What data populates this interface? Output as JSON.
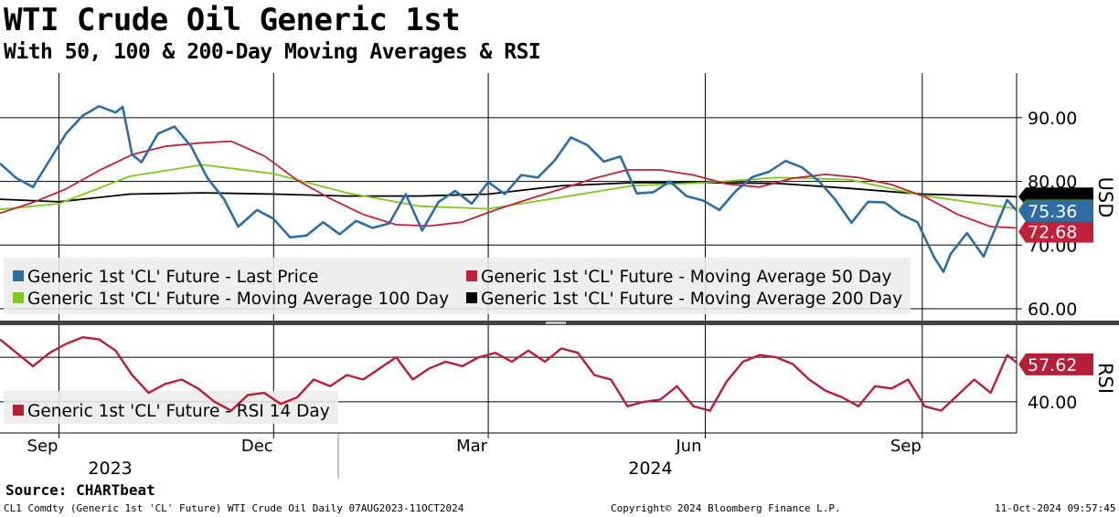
{
  "header": {
    "title": "WTI Crude Oil Generic 1st",
    "subtitle": "With 50, 100 & 200-Day Moving Averages & RSI"
  },
  "footer": {
    "source": "Source: CHARTbeat",
    "left": "CL1 Comdty (Generic 1st 'CL' Future) WTI Crude Oil  Daily 07AUG2023-11OCT2024",
    "center": "Copyright© 2024 Bloomberg Finance L.P.",
    "right": "11-Oct-2024 09:57:45"
  },
  "colors": {
    "last_price": "#2e6da4",
    "ma50": "#c0203a",
    "ma100": "#7ec820",
    "ma200": "#000000",
    "rsi": "#b81d3a",
    "grid": "#000000"
  },
  "chart_data": [
    {
      "type": "line",
      "panel": "price",
      "ylabel": "USD",
      "ylim": [
        58,
        97
      ],
      "xlim": [
        "2023-08-07",
        "2024-10-11"
      ],
      "y_ticks": [
        60,
        70,
        80,
        90
      ],
      "y_tick_labels": [
        "60.00",
        "70.00",
        "80.00",
        "90.00"
      ],
      "x_ticks": [
        "2023-09-01",
        "2023-12-01",
        "2024-03-01",
        "2024-06-01",
        "2024-09-01"
      ],
      "x_tick_labels": [
        "Sep",
        "Dec",
        "Mar",
        "Jun",
        "Sep"
      ],
      "year_labels": [
        {
          "date": "2023-10-16",
          "label": "2023"
        },
        {
          "date": "2024-06-01",
          "label": "2024"
        }
      ],
      "legend_position": "bottom-left",
      "last_value_labels": [
        {
          "series": "Generic 1st 'CL' Future - Last Price",
          "label": "75.36",
          "value": 75.36
        },
        {
          "series": "Generic 1st 'CL' Future - Moving Average 50 Day",
          "label": "72.68",
          "value": 72.68
        }
      ],
      "series": [
        {
          "name": "Generic 1st 'CL' Future - Last Price",
          "x": [
            "2023-08-07",
            "2023-08-14",
            "2023-08-21",
            "2023-08-28",
            "2023-09-04",
            "2023-09-11",
            "2023-09-18",
            "2023-09-25",
            "2023-09-28",
            "2023-10-02",
            "2023-10-06",
            "2023-10-13",
            "2023-10-20",
            "2023-10-27",
            "2023-11-03",
            "2023-11-10",
            "2023-11-16",
            "2023-11-24",
            "2023-12-01",
            "2023-12-08",
            "2023-12-15",
            "2023-12-22",
            "2023-12-29",
            "2024-01-05",
            "2024-01-12",
            "2024-01-19",
            "2024-01-26",
            "2024-02-02",
            "2024-02-09",
            "2024-02-16",
            "2024-02-23",
            "2024-03-01",
            "2024-03-08",
            "2024-03-15",
            "2024-03-22",
            "2024-03-29",
            "2024-04-05",
            "2024-04-12",
            "2024-04-19",
            "2024-04-26",
            "2024-05-03",
            "2024-05-10",
            "2024-05-17",
            "2024-05-24",
            "2024-05-31",
            "2024-06-07",
            "2024-06-14",
            "2024-06-21",
            "2024-06-28",
            "2024-07-05",
            "2024-07-12",
            "2024-07-19",
            "2024-07-26",
            "2024-08-02",
            "2024-08-09",
            "2024-08-16",
            "2024-08-23",
            "2024-08-30",
            "2024-09-06",
            "2024-09-10",
            "2024-09-13",
            "2024-09-20",
            "2024-09-27",
            "2024-10-04",
            "2024-10-07",
            "2024-10-11"
          ],
          "values": [
            82.8,
            80.5,
            79.1,
            83.3,
            87.5,
            90.3,
            91.8,
            90.8,
            91.7,
            84.2,
            83.0,
            87.5,
            88.6,
            85.5,
            80.5,
            77.2,
            72.9,
            75.5,
            74.1,
            71.2,
            71.5,
            73.6,
            71.7,
            73.8,
            72.7,
            73.4,
            78.0,
            72.3,
            76.8,
            78.5,
            76.5,
            79.9,
            78.0,
            81.0,
            80.6,
            83.2,
            86.9,
            85.7,
            83.1,
            83.9,
            78.1,
            78.3,
            80.0,
            77.7,
            77.0,
            75.5,
            78.5,
            80.7,
            81.5,
            83.2,
            82.2,
            80.1,
            77.2,
            73.5,
            76.8,
            76.7,
            74.8,
            73.6,
            68.1,
            65.8,
            68.6,
            71.9,
            68.2,
            74.4,
            77.1,
            75.4
          ]
        },
        {
          "name": "Generic 1st 'CL' Future - Moving Average 50 Day",
          "x": [
            "2023-08-07",
            "2023-08-21",
            "2023-09-04",
            "2023-09-18",
            "2023-10-02",
            "2023-10-16",
            "2023-10-30",
            "2023-11-13",
            "2023-11-27",
            "2023-12-11",
            "2023-12-25",
            "2024-01-08",
            "2024-01-22",
            "2024-02-05",
            "2024-02-19",
            "2024-03-04",
            "2024-03-18",
            "2024-04-01",
            "2024-04-15",
            "2024-04-29",
            "2024-05-13",
            "2024-05-27",
            "2024-06-10",
            "2024-06-24",
            "2024-07-08",
            "2024-07-22",
            "2024-08-05",
            "2024-08-19",
            "2024-09-02",
            "2024-09-16",
            "2024-09-30",
            "2024-10-11"
          ],
          "values": [
            75.0,
            76.7,
            78.8,
            81.7,
            84.2,
            85.5,
            86.0,
            86.3,
            84.0,
            80.2,
            77.3,
            74.8,
            73.2,
            73.0,
            73.6,
            75.5,
            77.2,
            78.8,
            80.5,
            81.8,
            81.8,
            81.0,
            79.6,
            79.1,
            80.5,
            81.1,
            80.6,
            79.5,
            77.6,
            74.8,
            72.9,
            72.7
          ]
        },
        {
          "name": "Generic 1st 'CL' Future - Moving Average 100 Day",
          "x": [
            "2023-08-07",
            "2023-09-01",
            "2023-10-01",
            "2023-11-01",
            "2023-12-01",
            "2024-01-01",
            "2024-02-01",
            "2024-03-01",
            "2024-04-01",
            "2024-05-01",
            "2024-06-01",
            "2024-07-01",
            "2024-08-01",
            "2024-09-01",
            "2024-10-11"
          ],
          "values": [
            75.6,
            76.5,
            80.8,
            82.6,
            81.2,
            78.2,
            76.1,
            75.7,
            77.5,
            79.3,
            79.8,
            80.6,
            80.3,
            77.8,
            75.7
          ]
        },
        {
          "name": "Generic 1st 'CL' Future - Moving Average 200 Day",
          "x": [
            "2023-08-07",
            "2023-09-01",
            "2023-10-01",
            "2023-11-01",
            "2023-12-01",
            "2024-01-01",
            "2024-02-01",
            "2024-03-01",
            "2024-04-01",
            "2024-05-01",
            "2024-06-01",
            "2024-07-01",
            "2024-08-01",
            "2024-09-01",
            "2024-10-11"
          ],
          "values": [
            77.2,
            76.8,
            78.0,
            78.2,
            78.0,
            77.7,
            77.7,
            78.0,
            79.3,
            79.8,
            79.8,
            79.7,
            78.9,
            78.0,
            77.6
          ]
        }
      ]
    },
    {
      "type": "line",
      "panel": "rsi",
      "ylabel": "RSI",
      "ylim": [
        26,
        74
      ],
      "xlim": [
        "2023-08-07",
        "2024-10-11"
      ],
      "y_ticks": [
        40,
        60
      ],
      "y_tick_labels": [
        "40.00"
      ],
      "legend_position": "bottom-left",
      "last_value_labels": [
        {
          "series": "Generic 1st 'CL' Future - RSI 14 Day",
          "label": "57.62",
          "value": 57.62
        }
      ],
      "series": [
        {
          "name": "Generic 1st 'CL' Future - RSI 14 Day",
          "x": [
            "2023-08-07",
            "2023-08-14",
            "2023-08-21",
            "2023-08-28",
            "2023-09-04",
            "2023-09-11",
            "2023-09-18",
            "2023-09-25",
            "2023-10-02",
            "2023-10-09",
            "2023-10-16",
            "2023-10-23",
            "2023-10-30",
            "2023-11-06",
            "2023-11-13",
            "2023-11-20",
            "2023-11-27",
            "2023-12-04",
            "2023-12-11",
            "2023-12-18",
            "2023-12-25",
            "2024-01-01",
            "2024-01-08",
            "2024-01-15",
            "2024-01-22",
            "2024-01-29",
            "2024-02-05",
            "2024-02-12",
            "2024-02-19",
            "2024-02-26",
            "2024-03-04",
            "2024-03-11",
            "2024-03-18",
            "2024-03-25",
            "2024-04-01",
            "2024-04-08",
            "2024-04-15",
            "2024-04-22",
            "2024-04-29",
            "2024-05-06",
            "2024-05-13",
            "2024-05-20",
            "2024-05-27",
            "2024-06-03",
            "2024-06-10",
            "2024-06-17",
            "2024-06-24",
            "2024-07-01",
            "2024-07-08",
            "2024-07-15",
            "2024-07-22",
            "2024-07-29",
            "2024-08-05",
            "2024-08-12",
            "2024-08-19",
            "2024-08-26",
            "2024-09-02",
            "2024-09-09",
            "2024-09-16",
            "2024-09-23",
            "2024-09-30",
            "2024-10-07",
            "2024-10-11"
          ],
          "values": [
            68.0,
            62.0,
            56.0,
            62.0,
            66.0,
            69.0,
            68.0,
            63.0,
            52.0,
            44.0,
            48.0,
            50.0,
            46.0,
            40.0,
            36.0,
            43.0,
            44.0,
            39.0,
            42.0,
            50.0,
            47.0,
            52.0,
            50.0,
            55.0,
            60.0,
            50.0,
            55.0,
            58.0,
            56.0,
            60.0,
            62.0,
            58.0,
            63.0,
            58.0,
            64.0,
            62.0,
            52.0,
            50.0,
            38.0,
            40.0,
            41.0,
            47.0,
            38.0,
            36.0,
            49.0,
            58.0,
            61.0,
            60.0,
            57.0,
            50.0,
            45.0,
            42.0,
            38.0,
            47.0,
            46.0,
            50.0,
            38.0,
            36.0,
            43.0,
            50.0,
            44.0,
            61.0,
            57.6
          ]
        }
      ]
    }
  ]
}
